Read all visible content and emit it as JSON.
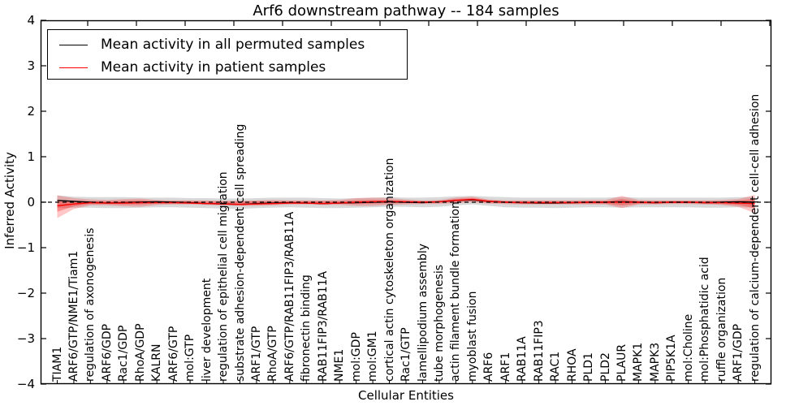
{
  "title": "Arf6 downstream pathway -- 184 samples",
  "xlabel": "Cellular Entities",
  "ylabel": "Inferred Activity",
  "legend": [
    {
      "label": "Mean activity in all permuted samples",
      "color": "#000000"
    },
    {
      "label": "Mean activity in patient samples",
      "color": "#ff0000"
    }
  ],
  "y_tick_labels": [
    "4",
    "3",
    "2",
    "1",
    "0",
    "−1",
    "−2",
    "−3",
    "−4"
  ],
  "chart_data": {
    "type": "line",
    "title": "Arf6 downstream pathway -- 184 samples",
    "xlabel": "Cellular Entities",
    "ylabel": "Inferred Activity",
    "ylim": [
      -4,
      4
    ],
    "grid": false,
    "legend_position": "upper left",
    "zero_line": {
      "style": "dashed",
      "color": "#000000",
      "y": 0
    },
    "categories": [
      "TIAM1",
      "ARF6/GTP/NME1/Tiam1",
      "regulation of axonogenesis",
      "ARF6/GDP",
      "Rac1/GDP",
      "RhoA/GDP",
      "KALRN",
      "ARF6/GTP",
      "mol:GTP",
      "liver development",
      "regulation of epithelial cell migration",
      "substrate adhesion-dependent cell spreading",
      "ARF1/GTP",
      "RhoA/GTP",
      "ARF6/GTP/RAB11FIP3/RAB11A",
      "fibronectin binding",
      "RAB11FIP3/RAB11A",
      "NME1",
      "mol:GDP",
      "mol:GM1",
      "cortical actin cytoskeleton organization",
      "Rac1/GTP",
      "lamellipodium assembly",
      "tube morphogenesis",
      "actin filament bundle formation",
      "myoblast fusion",
      "ARF6",
      "ARF1",
      "RAB11A",
      "RAB11FIP3",
      "RAC1",
      "RHOA",
      "PLD1",
      "PLD2",
      "PLAUR",
      "MAPK1",
      "MAPK3",
      "PIP5K1A",
      "mol:Choline",
      "mol:Phosphatidic acid",
      "ruffle organization",
      "ARF1/GDP",
      "regulation of calcium-dependent cell-cell adhesion"
    ],
    "series": [
      {
        "name": "Mean activity in all permuted samples",
        "color": "#000000",
        "values": [
          0.04,
          0.02,
          0.0,
          -0.02,
          -0.01,
          0.0,
          0.01,
          0.0,
          -0.01,
          -0.03,
          -0.04,
          -0.05,
          -0.03,
          -0.02,
          -0.01,
          -0.02,
          -0.03,
          -0.02,
          -0.01,
          0.0,
          0.01,
          0.0,
          -0.01,
          0.01,
          0.04,
          0.05,
          0.02,
          0.0,
          -0.01,
          -0.02,
          -0.02,
          -0.01,
          0.0,
          0.0,
          0.01,
          0.0,
          -0.01,
          0.0,
          0.0,
          -0.01,
          0.0,
          0.01,
          0.0
        ]
      },
      {
        "name": "Mean activity in patient samples",
        "color": "#ff0000",
        "values": [
          -0.08,
          -0.04,
          -0.01,
          -0.02,
          -0.02,
          -0.01,
          -0.01,
          -0.01,
          -0.02,
          -0.03,
          -0.04,
          -0.05,
          -0.04,
          -0.03,
          -0.02,
          -0.02,
          -0.03,
          -0.02,
          0.0,
          0.01,
          0.02,
          0.01,
          0.0,
          0.01,
          0.04,
          0.06,
          0.02,
          0.0,
          -0.01,
          -0.01,
          -0.01,
          -0.01,
          0.0,
          0.0,
          0.0,
          0.0,
          -0.01,
          0.0,
          0.0,
          -0.01,
          -0.01,
          -0.02,
          -0.03
        ]
      }
    ],
    "bands": [
      {
        "name": "permuted-samples-range",
        "color": "#888888",
        "opacity": 0.32,
        "hi": [
          0.15,
          0.12,
          0.11,
          0.11,
          0.11,
          0.1,
          0.1,
          0.1,
          0.09,
          0.09,
          0.08,
          0.08,
          0.09,
          0.1,
          0.1,
          0.1,
          0.09,
          0.08,
          0.09,
          0.1,
          0.11,
          0.1,
          0.1,
          0.11,
          0.13,
          0.14,
          0.12,
          0.11,
          0.1,
          0.1,
          0.1,
          0.1,
          0.1,
          0.1,
          0.11,
          0.1,
          0.1,
          0.1,
          0.1,
          0.1,
          0.1,
          0.11,
          0.11
        ],
        "lo": [
          -0.13,
          -0.12,
          -0.12,
          -0.13,
          -0.13,
          -0.12,
          -0.11,
          -0.11,
          -0.12,
          -0.13,
          -0.14,
          -0.15,
          -0.13,
          -0.12,
          -0.11,
          -0.12,
          -0.13,
          -0.13,
          -0.12,
          -0.11,
          -0.1,
          -0.1,
          -0.11,
          -0.1,
          -0.07,
          -0.05,
          -0.08,
          -0.11,
          -0.12,
          -0.12,
          -0.13,
          -0.12,
          -0.11,
          -0.11,
          -0.12,
          -0.11,
          -0.11,
          -0.11,
          -0.11,
          -0.12,
          -0.12,
          -0.11,
          -0.12
        ]
      },
      {
        "name": "patient-samples-range-outer",
        "color": "#ff0000",
        "opacity": 0.22,
        "hi": [
          0.15,
          0.09,
          0.06,
          0.05,
          0.07,
          0.08,
          0.05,
          0.04,
          0.04,
          0.04,
          0.03,
          0.03,
          0.04,
          0.05,
          0.04,
          0.04,
          0.04,
          0.05,
          0.09,
          0.1,
          0.09,
          0.06,
          0.04,
          0.05,
          0.1,
          0.12,
          0.06,
          0.04,
          0.04,
          0.04,
          0.04,
          0.04,
          0.05,
          0.05,
          0.14,
          0.05,
          0.04,
          0.04,
          0.04,
          0.04,
          0.05,
          0.07,
          0.16
        ],
        "lo": [
          -0.35,
          -0.15,
          -0.07,
          -0.07,
          -0.09,
          -0.1,
          -0.06,
          -0.05,
          -0.05,
          -0.06,
          -0.07,
          -0.08,
          -0.08,
          -0.07,
          -0.05,
          -0.05,
          -0.06,
          -0.06,
          -0.08,
          -0.08,
          -0.06,
          -0.05,
          -0.04,
          -0.04,
          -0.02,
          0.0,
          -0.03,
          -0.04,
          -0.05,
          -0.05,
          -0.05,
          -0.05,
          -0.05,
          -0.05,
          -0.13,
          -0.05,
          -0.05,
          -0.04,
          -0.04,
          -0.05,
          -0.06,
          -0.1,
          -0.24
        ]
      },
      {
        "name": "patient-samples-range-inner",
        "color": "#ff0000",
        "opacity": 0.3,
        "hi": [
          0.05,
          0.03,
          0.02,
          0.02,
          0.03,
          0.04,
          0.02,
          0.02,
          0.02,
          0.01,
          0.01,
          0.01,
          0.02,
          0.02,
          0.02,
          0.02,
          0.02,
          0.02,
          0.04,
          0.05,
          0.04,
          0.03,
          0.02,
          0.02,
          0.07,
          0.09,
          0.04,
          0.02,
          0.02,
          0.02,
          0.02,
          0.02,
          0.02,
          0.02,
          0.07,
          0.02,
          0.02,
          0.02,
          0.02,
          0.02,
          0.02,
          0.03,
          0.08
        ],
        "lo": [
          -0.21,
          -0.09,
          -0.04,
          -0.04,
          -0.05,
          -0.05,
          -0.03,
          -0.03,
          -0.03,
          -0.04,
          -0.04,
          -0.05,
          -0.05,
          -0.04,
          -0.03,
          -0.03,
          -0.04,
          -0.03,
          -0.04,
          -0.03,
          -0.02,
          -0.02,
          -0.02,
          -0.01,
          0.01,
          0.03,
          -0.01,
          -0.02,
          -0.03,
          -0.03,
          -0.03,
          -0.03,
          -0.03,
          -0.03,
          -0.07,
          -0.03,
          -0.03,
          -0.02,
          -0.02,
          -0.03,
          -0.04,
          -0.06,
          -0.13
        ]
      }
    ]
  }
}
